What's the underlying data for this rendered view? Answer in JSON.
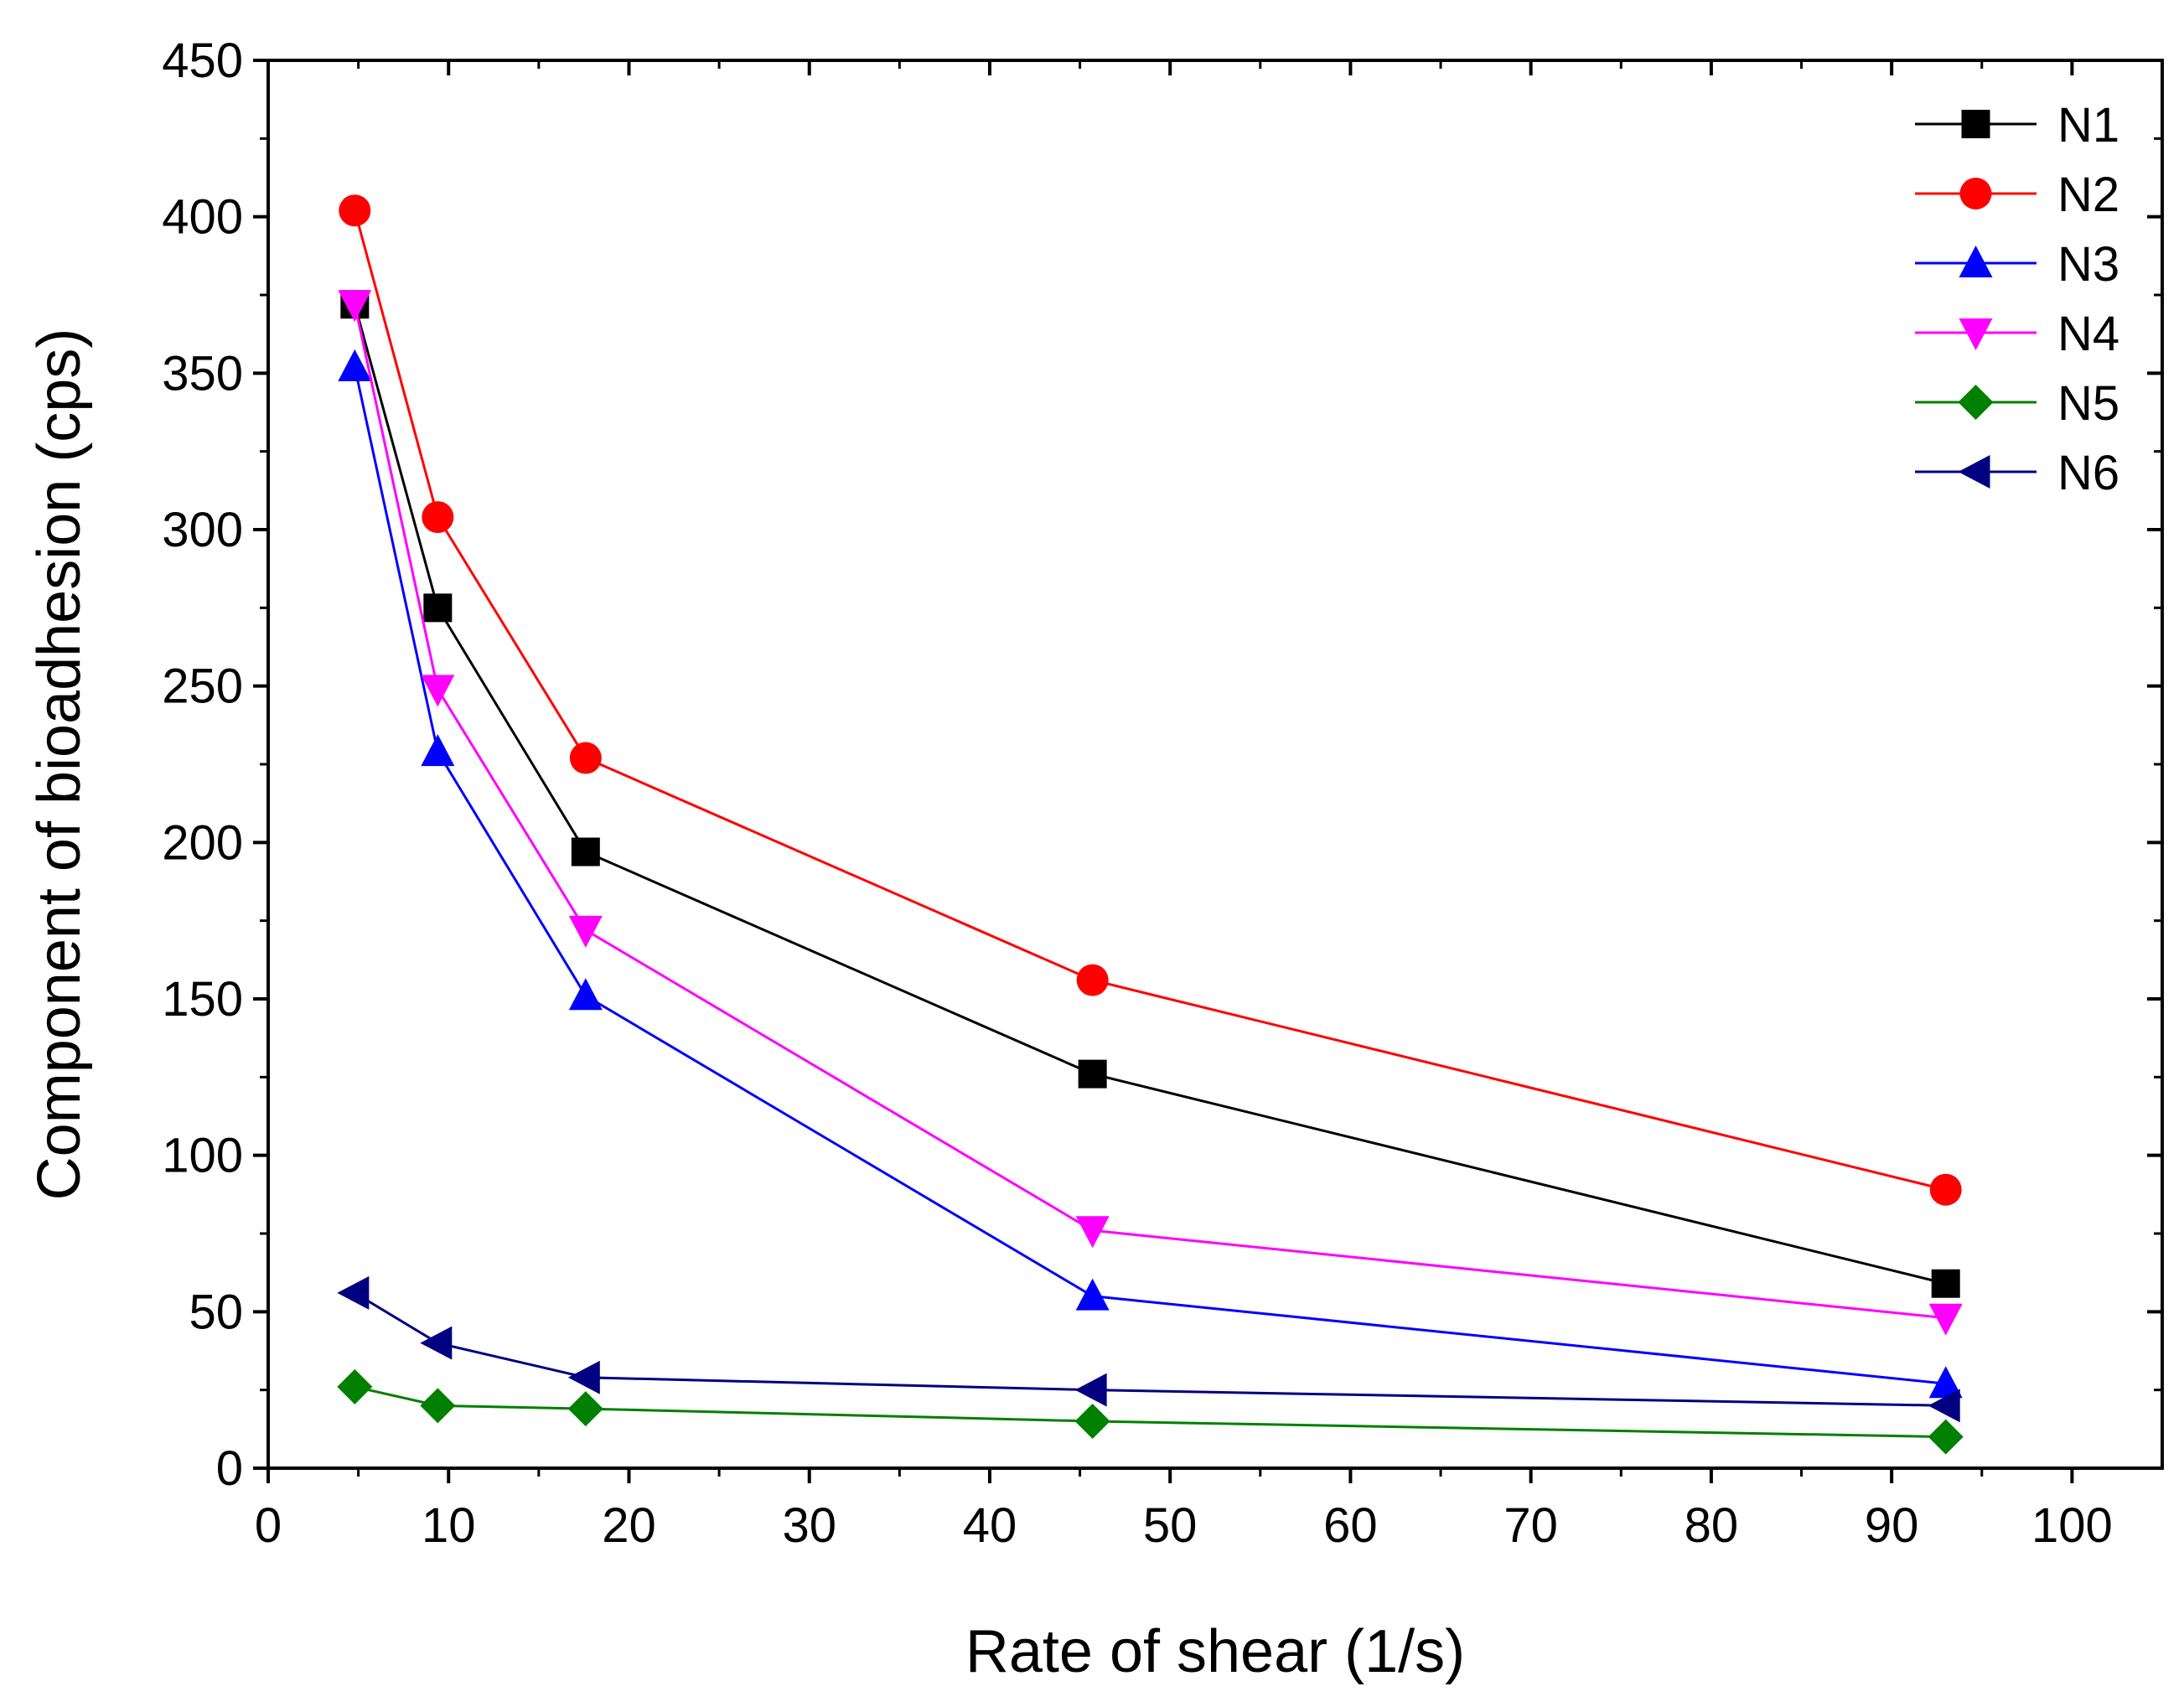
{
  "chart_data": {
    "type": "line",
    "title": "",
    "xlabel": "Rate of shear (1/s)",
    "ylabel": "Component of bioadhesion (cps)",
    "xlim": [
      0,
      105
    ],
    "ylim": [
      0,
      450
    ],
    "xticks": [
      0,
      10,
      20,
      30,
      40,
      50,
      60,
      70,
      80,
      90,
      100
    ],
    "yticks": [
      0,
      50,
      100,
      150,
      200,
      250,
      300,
      350,
      400,
      450
    ],
    "xtick_labels": [
      "0",
      "10",
      "20",
      "30",
      "40",
      "50",
      "60",
      "70",
      "80",
      "90",
      "100"
    ],
    "ytick_labels": [
      "0",
      "50",
      "100",
      "150",
      "200",
      "250",
      "300",
      "350",
      "400",
      "450"
    ],
    "grid": false,
    "legend_position": "top-right",
    "x": [
      4.8,
      9.4,
      17.6,
      45.7,
      93.0
    ],
    "series": [
      {
        "name": "N1",
        "color": "#000000",
        "marker": "square",
        "values": [
          372,
          275,
          197,
          126,
          59
        ]
      },
      {
        "name": "N2",
        "color": "#ff0000",
        "marker": "circle",
        "values": [
          402,
          304,
          227,
          156,
          89
        ]
      },
      {
        "name": "N3",
        "color": "#0000ff",
        "marker": "triangle-up",
        "values": [
          352,
          229,
          151,
          55,
          27
        ]
      },
      {
        "name": "N4",
        "color": "#ff00ff",
        "marker": "triangle-down",
        "values": [
          372,
          249,
          172,
          76,
          48
        ]
      },
      {
        "name": "N5",
        "color": "#008000",
        "marker": "diamond",
        "values": [
          26,
          20,
          19,
          15,
          10
        ]
      },
      {
        "name": "N6",
        "color": "#000080",
        "marker": "triangle-left",
        "values": [
          56,
          40,
          29,
          25,
          20
        ]
      }
    ]
  }
}
